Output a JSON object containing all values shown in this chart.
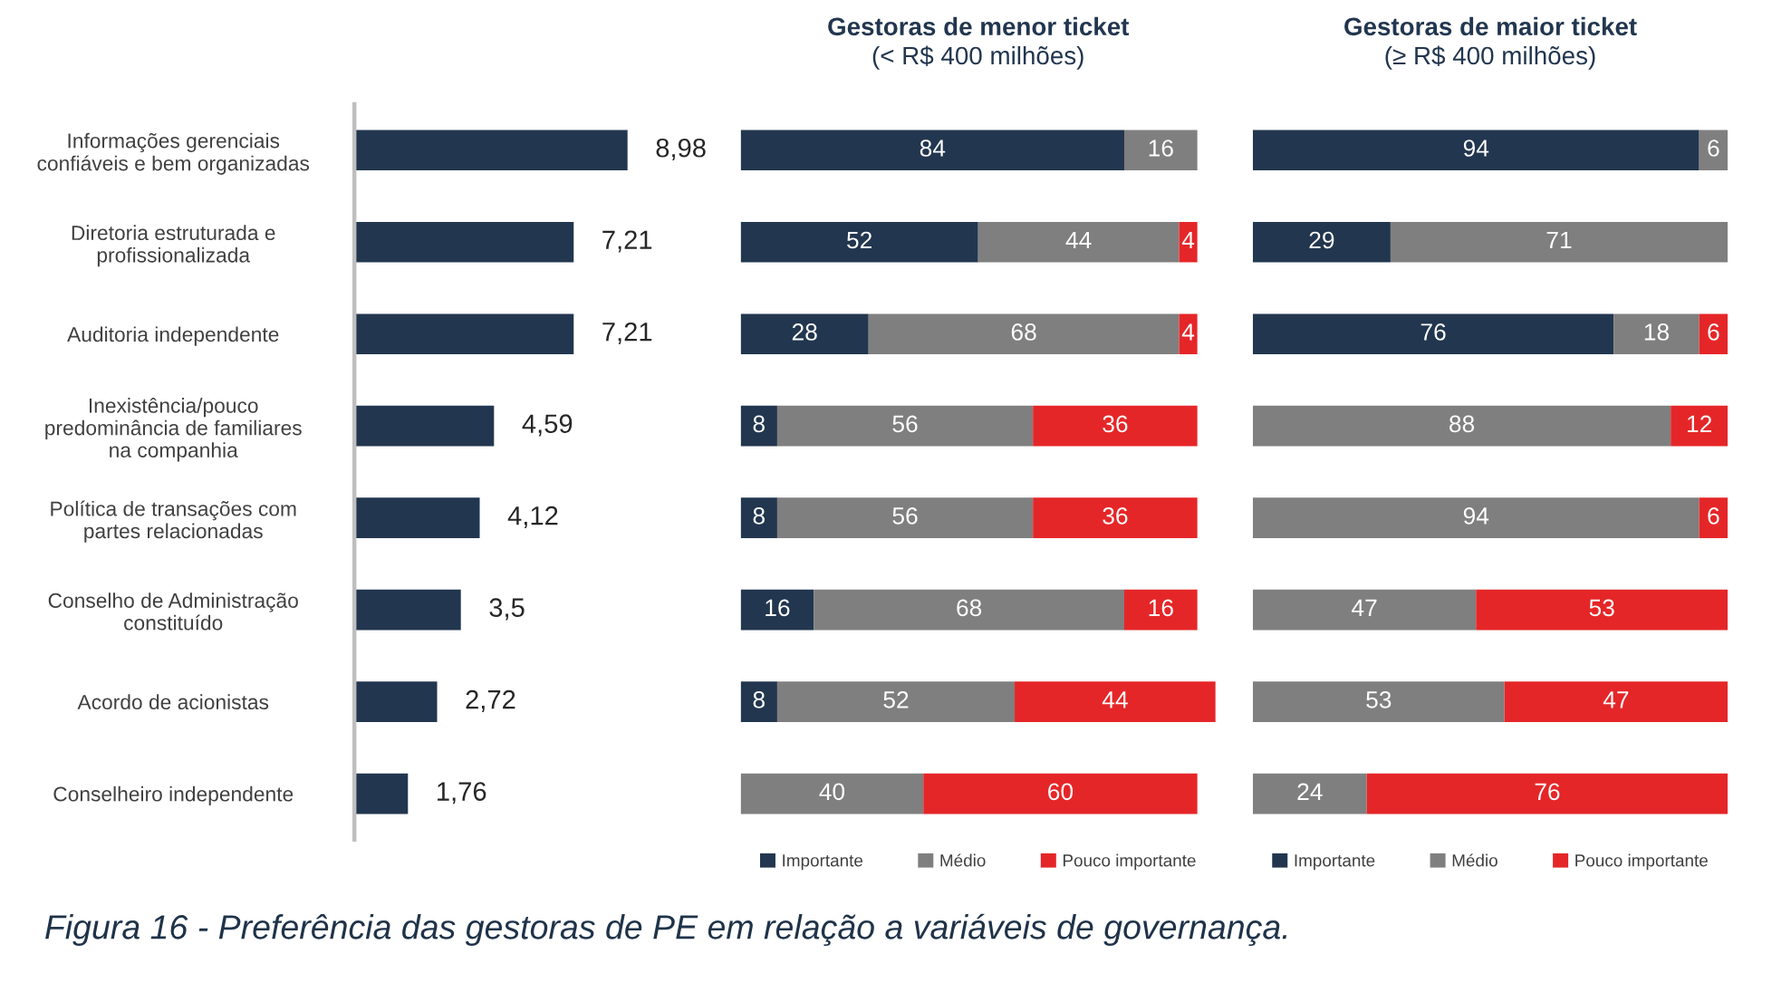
{
  "chart_data": [
    {
      "type": "bar",
      "orientation": "horizontal",
      "categories": [
        "Informações gerenciais\nconfiáveis e bem organizadas",
        "Diretoria estruturada e\nprofissionalizada",
        "Auditoria independente",
        "Inexistência/pouco\npredominância de familiares\nna companhia",
        "Política de transações com\npartes relacionadas",
        "Conselho de Administração\nconstituído",
        "Acordo de acionistas",
        "Conselheiro independente"
      ],
      "values": [
        8.98,
        7.21,
        7.21,
        4.59,
        4.12,
        3.5,
        2.72,
        1.76
      ],
      "value_labels": [
        "8,98",
        "7,21",
        "7,21",
        "4,59",
        "4,12",
        "3,5",
        "2,72",
        "1,76"
      ],
      "color": "#22364f",
      "tick_labels": "y",
      "annotations": [
        "Figura 16 - Preferência das gestoras de PE em relação a variáveis de governança."
      ]
    },
    {
      "type": "bar",
      "orientation": "horizontal",
      "stacked": true,
      "title": "Gestoras de menor ticket",
      "subtitle": "(< R$ 400 milhões)",
      "categories": [
        null,
        null,
        null,
        null,
        null,
        null,
        null,
        null
      ],
      "series": [
        {
          "name": "Importante",
          "color": "#22364f",
          "values": [
            84,
            52,
            28,
            8,
            8,
            16,
            8,
            null
          ]
        },
        {
          "name": "Médio",
          "color": "#7f7f7f",
          "values": [
            16,
            44,
            68,
            56,
            56,
            68,
            52,
            40
          ]
        },
        {
          "name": "Pouco importante",
          "color": "#e52628",
          "values": [
            null,
            4,
            4,
            36,
            36,
            16,
            44,
            60
          ]
        }
      ],
      "data_labels": true,
      "legend": "bottom",
      "tick_labels": false
    },
    {
      "type": "bar",
      "orientation": "horizontal",
      "stacked": true,
      "title": "Gestoras de maior ticket",
      "subtitle": "(≥ R$ 400 milhões)",
      "categories": [
        null,
        null,
        null,
        null,
        null,
        null,
        null,
        null
      ],
      "series": [
        {
          "name": "Importante",
          "color": "#22364f",
          "values": [
            94,
            29,
            76,
            null,
            null,
            null,
            null,
            null
          ]
        },
        {
          "name": "Médio",
          "color": "#7f7f7f",
          "values": [
            6,
            71,
            18,
            88,
            94,
            47,
            53,
            24
          ]
        },
        {
          "name": "Pouco importante",
          "color": "#e52628",
          "values": [
            null,
            null,
            6,
            12,
            6,
            53,
            47,
            76
          ]
        }
      ],
      "data_labels": true,
      "legend": "bottom",
      "tick_labels": false
    }
  ]
}
